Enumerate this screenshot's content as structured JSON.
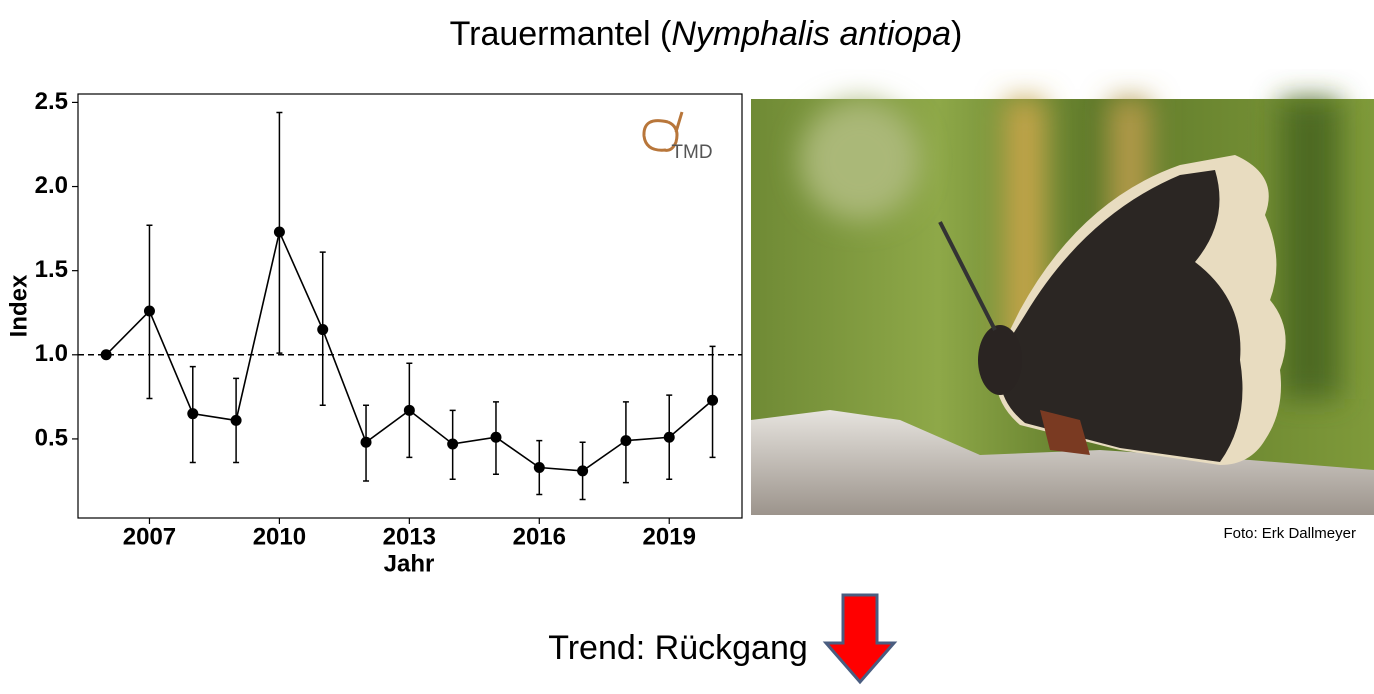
{
  "slide": {
    "title": [
      "Trauermantel (",
      "Nymphalis antiopa",
      ")"
    ],
    "photo_credit": "Foto: Erk Dallmeyer",
    "trend": "Trend: Rückgang",
    "logo": "TMD"
  },
  "chart_data": {
    "type": "line",
    "xlabel": "Jahr",
    "ylabel": "Index",
    "x": [
      2006,
      2007,
      2008,
      2009,
      2010,
      2011,
      2012,
      2013,
      2014,
      2015,
      2016,
      2017,
      2018,
      2019,
      2020
    ],
    "values": [
      1.0,
      1.26,
      0.65,
      0.61,
      1.73,
      1.15,
      0.48,
      0.67,
      0.47,
      0.51,
      0.33,
      0.31,
      0.49,
      0.51,
      0.73
    ],
    "lower": [
      null,
      0.74,
      0.36,
      0.36,
      1.01,
      0.7,
      0.25,
      0.39,
      0.26,
      0.29,
      0.17,
      0.14,
      0.24,
      0.26,
      0.39
    ],
    "upper": [
      null,
      1.77,
      0.93,
      0.86,
      2.44,
      1.61,
      0.7,
      0.95,
      0.67,
      0.72,
      0.49,
      0.48,
      0.72,
      0.76,
      1.05
    ],
    "color": "#000000",
    "hline": 1,
    "xlim": [
      2005.35,
      2020.68
    ],
    "xticks": [
      2007,
      2010,
      2013,
      2016,
      2019
    ],
    "ylim": [
      0.03,
      2.55
    ],
    "yticks": [
      0.5,
      {
        "value": 1,
        "label": "1.0"
      },
      1.5,
      {
        "value": 2,
        "label": "2.0"
      },
      2.5
    ],
    "grid": false
  }
}
